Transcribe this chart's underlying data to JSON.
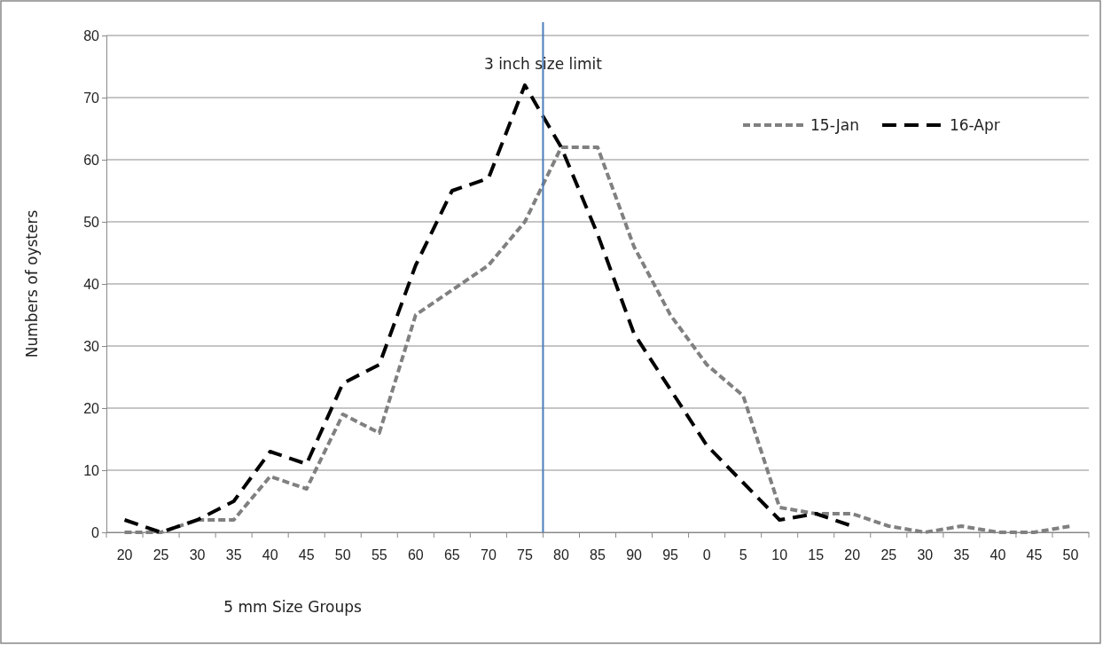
{
  "chart_data": {
    "type": "line",
    "xlabel": "5 mm  Size Groups",
    "ylabel": "Numbers  of oysters",
    "categories": [
      "20",
      "25",
      "30",
      "35",
      "40",
      "45",
      "50",
      "55",
      "60",
      "65",
      "70",
      "75",
      "80",
      "85",
      "90",
      "95",
      "0",
      "5",
      "10",
      "15",
      "20",
      "25",
      "30",
      "35",
      "40",
      "45",
      "50"
    ],
    "series": [
      {
        "name": "15-Jan",
        "color": "#808080",
        "line_style": "dotted",
        "values": [
          0,
          0,
          2,
          2,
          9,
          7,
          19,
          16,
          35,
          39,
          43,
          50,
          62,
          62,
          46,
          35,
          27,
          22,
          4,
          3,
          3,
          1,
          0,
          1,
          0,
          0,
          1
        ]
      },
      {
        "name": "16-Apr",
        "color": "#000000",
        "line_style": "dashed",
        "values": [
          2,
          0,
          2,
          5,
          13,
          11,
          24,
          27,
          43,
          55,
          57,
          72,
          62,
          48,
          32,
          23,
          14,
          8,
          2,
          3,
          1,
          null,
          null,
          null,
          null,
          null,
          null
        ]
      }
    ],
    "ylim": [
      0,
      80
    ],
    "yticks": [
      0,
      10,
      20,
      30,
      40,
      50,
      60,
      70,
      80
    ],
    "grid": "y",
    "legend": "top right",
    "marker": "none",
    "ref_lines": [
      {
        "axis": "x",
        "value": "80",
        "label": "3 inch size limit",
        "color": "#4a7ebb"
      }
    ]
  }
}
